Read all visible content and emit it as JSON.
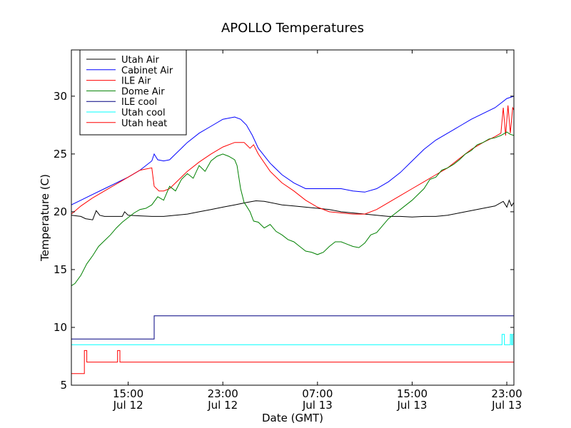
{
  "chart_data": {
    "type": "line",
    "title": "APOLLO Temperatures",
    "xlabel": "Date (GMT)",
    "ylabel": "Temperature (C)",
    "xlim": [
      10.2,
      47.6
    ],
    "ylim": [
      5,
      34
    ],
    "x_unit": "hours since 00:00 Jul 12 (GMT)",
    "xticks": [
      {
        "value": 15,
        "line1": "15:00",
        "line2": "Jul 12"
      },
      {
        "value": 23,
        "line1": "23:00",
        "line2": "Jul 12"
      },
      {
        "value": 31,
        "line1": "07:00",
        "line2": "Jul 13"
      },
      {
        "value": 39,
        "line1": "15:00",
        "line2": "Jul 13"
      },
      {
        "value": 47,
        "line1": "23:00",
        "line2": "Jul 13"
      }
    ],
    "yticks": [
      5,
      10,
      15,
      20,
      25,
      30
    ],
    "grid": false,
    "legend_position": "top-left",
    "series": [
      {
        "name": "Utah Air",
        "color": "#000000",
        "x": [
          10.2,
          11,
          11.4,
          12,
          12.3,
          12.6,
          13,
          14,
          14.5,
          14.7,
          15,
          16,
          17,
          18,
          19,
          20,
          21,
          22,
          23,
          24,
          25,
          25.8,
          26.5,
          27,
          28,
          29,
          30,
          31,
          32,
          33,
          34,
          35,
          36,
          37,
          38,
          39,
          40,
          41,
          42,
          43,
          44,
          45,
          46,
          46.7,
          47,
          47.2,
          47.4,
          47.6
        ],
        "y": [
          19.7,
          19.6,
          19.4,
          19.3,
          20.1,
          19.7,
          19.6,
          19.6,
          19.6,
          20.0,
          19.7,
          19.65,
          19.6,
          19.6,
          19.7,
          19.8,
          20.0,
          20.2,
          20.4,
          20.6,
          20.8,
          20.95,
          20.9,
          20.8,
          20.6,
          20.5,
          20.4,
          20.3,
          20.2,
          20.0,
          19.9,
          19.8,
          19.7,
          19.6,
          19.6,
          19.55,
          19.6,
          19.6,
          19.7,
          19.9,
          20.1,
          20.3,
          20.5,
          20.9,
          20.4,
          21.0,
          20.5,
          20.8
        ]
      },
      {
        "name": "Cabinet Air",
        "color": "#0000ff",
        "x": [
          10.2,
          11,
          12,
          13,
          14,
          15,
          16,
          17,
          17.2,
          17.5,
          18,
          18.5,
          19,
          20,
          21,
          22,
          23,
          24,
          24.5,
          25,
          25.5,
          26,
          27,
          28,
          29,
          30,
          31,
          32,
          33,
          34,
          35,
          36,
          37,
          38,
          39,
          40,
          41,
          42,
          43,
          44,
          45,
          46,
          46.5,
          47,
          47.6
        ],
        "y": [
          20.6,
          21.0,
          21.5,
          22.0,
          22.5,
          23.0,
          23.6,
          24.4,
          25.0,
          24.5,
          24.4,
          24.5,
          25.0,
          26.0,
          26.8,
          27.4,
          28.0,
          28.2,
          28.0,
          27.5,
          26.6,
          25.5,
          24.2,
          23.2,
          22.5,
          22.0,
          22.0,
          22.0,
          22.0,
          21.8,
          21.7,
          22.0,
          22.6,
          23.4,
          24.4,
          25.4,
          26.2,
          26.8,
          27.4,
          28.0,
          28.5,
          29.0,
          29.4,
          29.8,
          30.0
        ]
      },
      {
        "name": "ILE Air",
        "color": "#ff0000",
        "x": [
          10.2,
          11,
          12,
          13,
          14,
          15,
          16,
          17,
          17.2,
          17.6,
          18,
          18.5,
          19,
          20,
          21,
          22,
          23,
          24,
          24.8,
          25,
          25.3,
          25.6,
          26,
          27,
          28,
          29,
          30,
          31,
          32,
          33,
          34,
          35,
          36,
          37,
          38,
          39,
          40,
          41,
          42,
          43,
          44,
          45,
          46,
          46.5,
          46.7,
          46.9,
          47.1,
          47.3,
          47.5,
          47.6
        ],
        "y": [
          19.8,
          20.5,
          21.2,
          21.8,
          22.4,
          23.0,
          23.6,
          23.8,
          22.2,
          21.8,
          21.8,
          22.0,
          22.5,
          23.5,
          24.3,
          25.0,
          25.6,
          26.0,
          26.0,
          25.8,
          25.5,
          25.8,
          25.0,
          23.5,
          22.5,
          21.8,
          21.0,
          20.4,
          20.0,
          19.9,
          19.8,
          19.8,
          20.2,
          20.8,
          21.4,
          22.0,
          22.6,
          23.2,
          23.8,
          24.6,
          25.4,
          26.0,
          26.5,
          26.8,
          29.0,
          26.6,
          29.2,
          26.8,
          29.0,
          28.8
        ]
      },
      {
        "name": "Dome Air",
        "color": "#008000",
        "x": [
          10.2,
          10.5,
          11,
          11.5,
          12,
          12.5,
          13,
          13.5,
          14,
          14.5,
          15,
          15.5,
          16,
          16.5,
          17,
          17.5,
          18,
          18.5,
          19,
          19.5,
          20,
          20.5,
          21,
          21.5,
          22,
          22.5,
          23,
          23.5,
          24,
          24.2,
          24.5,
          24.8,
          25,
          25.3,
          25.6,
          26,
          26.5,
          27,
          27.5,
          28,
          28.5,
          29,
          29.5,
          30,
          30.5,
          31,
          31.5,
          32,
          32.5,
          33,
          33.5,
          34,
          34.5,
          35,
          35.5,
          36,
          36.5,
          37,
          37.5,
          38,
          38.5,
          39,
          39.5,
          40,
          40.5,
          41,
          41.5,
          42,
          42.5,
          43,
          43.5,
          44,
          44.5,
          45,
          45.5,
          46,
          46.5,
          47,
          47.3,
          47.6
        ],
        "y": [
          13.6,
          13.8,
          14.5,
          15.5,
          16.2,
          17.0,
          17.5,
          18.0,
          18.6,
          19.1,
          19.5,
          19.9,
          20.2,
          20.3,
          20.6,
          21.3,
          21.0,
          22.2,
          21.8,
          22.8,
          23.3,
          22.9,
          24.0,
          23.5,
          24.4,
          24.8,
          25.0,
          24.8,
          24.5,
          24.0,
          22.0,
          20.8,
          20.5,
          20.0,
          19.2,
          19.1,
          18.6,
          18.9,
          18.3,
          18.0,
          17.6,
          17.4,
          17.0,
          16.6,
          16.5,
          16.3,
          16.5,
          17.0,
          17.4,
          17.4,
          17.2,
          17.0,
          16.9,
          17.3,
          18.0,
          18.2,
          18.8,
          19.4,
          19.8,
          20.2,
          20.6,
          21.0,
          21.5,
          22.0,
          22.8,
          23.0,
          23.6,
          23.8,
          24.1,
          24.5,
          25.0,
          25.3,
          25.8,
          26.0,
          26.3,
          26.4,
          26.6,
          26.9,
          26.7,
          26.6
        ]
      },
      {
        "name": "ILE cool",
        "color": "#000080",
        "x": [
          10.2,
          17.2,
          17.2,
          47.6
        ],
        "y": [
          9.0,
          9.0,
          11.0,
          11.0
        ]
      },
      {
        "name": "Utah cool",
        "color": "#00ffff",
        "x": [
          10.2,
          46.6,
          46.6,
          46.8,
          46.8,
          47.3,
          47.3,
          47.4,
          47.4,
          47.5,
          47.5,
          47.6
        ],
        "y": [
          8.5,
          8.5,
          9.4,
          9.4,
          8.5,
          8.5,
          9.4,
          9.4,
          8.5,
          8.5,
          9.4,
          9.4
        ]
      },
      {
        "name": "Utah heat",
        "color": "#ff0000",
        "x": [
          10.2,
          11.3,
          11.3,
          11.5,
          11.5,
          11.7,
          11.7,
          14.1,
          14.1,
          14.3,
          14.3,
          47.6
        ],
        "y": [
          6.0,
          6.0,
          8.0,
          8.0,
          7.0,
          7.0,
          7.0,
          7.0,
          8.0,
          8.0,
          7.0,
          7.0
        ]
      }
    ]
  }
}
